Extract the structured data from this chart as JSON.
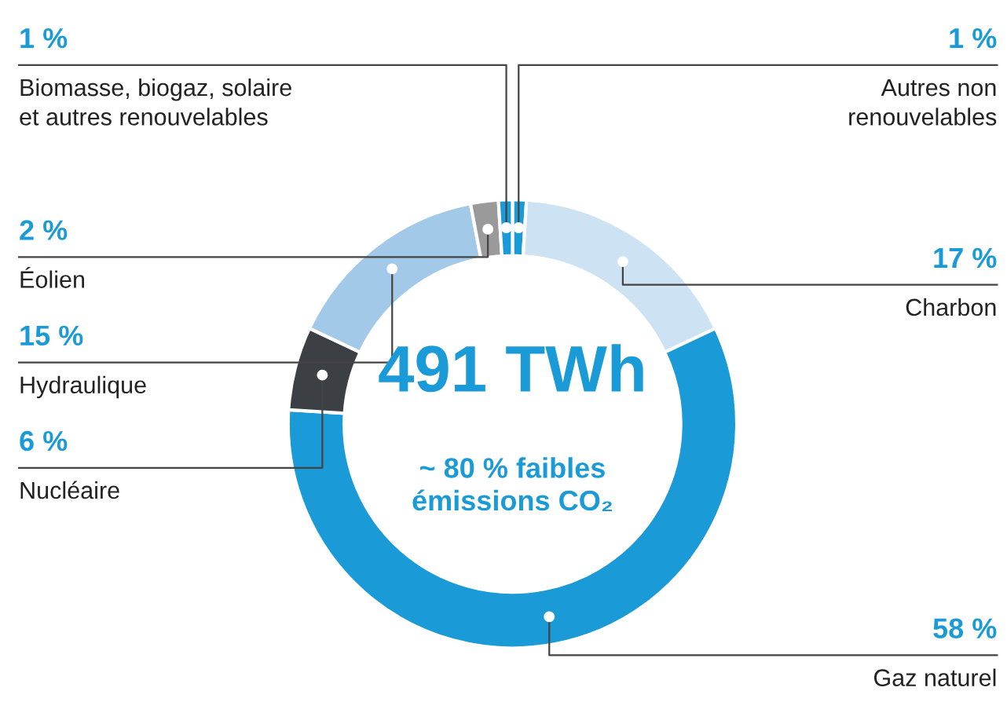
{
  "chart_data": {
    "type": "donut",
    "categories": [
      "Autres non\nrenouvelables",
      "Charbon",
      "Gaz naturel",
      "Nucléaire",
      "Hydraulique",
      "Éolien",
      "Biomasse, biogaz, solaire\net autres renouvelables"
    ],
    "values": [
      1,
      17,
      58,
      6,
      15,
      2,
      1
    ],
    "colors": [
      "#1a9ad6",
      "#cde2f2",
      "#1a9ad6",
      "#3c3f44",
      "#a3c9e8",
      "#9a9a9a",
      "#1a9ad6"
    ],
    "value_labels": [
      "1 %",
      "17 %",
      "58 %",
      "6 %",
      "15 %",
      "2 %",
      "1 %"
    ],
    "annotations": [
      "491 TWh",
      "~ 80 % faibles\némissions CO₂"
    ]
  }
}
